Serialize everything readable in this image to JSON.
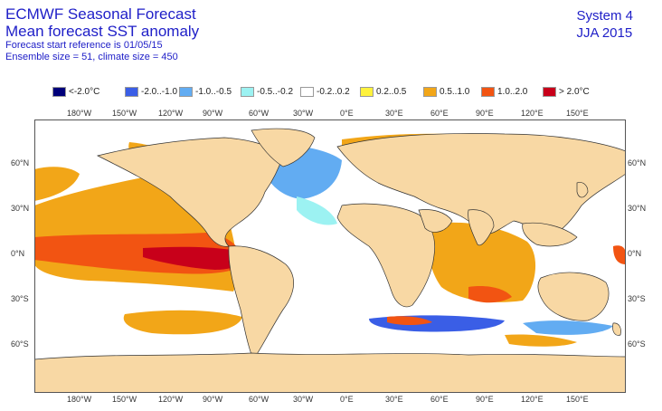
{
  "header": {
    "title_line1": "ECMWF Seasonal Forecast",
    "title_line2": "Mean forecast SST anomaly",
    "info_line1": "Forecast start reference is 01/05/15",
    "info_line2": "Ensemble size = 51, climate size = 450",
    "system": "System 4",
    "season": "JJA 2015"
  },
  "legend": [
    {
      "label": "<-2.0°C",
      "color": "#00007a"
    },
    {
      "label": "-2.0..-1.0",
      "color": "#3a5ee6"
    },
    {
      "label": "-1.0..-0.5",
      "color": "#62acf2"
    },
    {
      "label": "-0.5..-0.2",
      "color": "#9cf2f2"
    },
    {
      "label": "-0.2..0.2",
      "color": "#ffffff"
    },
    {
      "label": "0.2..0.5",
      "color": "#fff23c"
    },
    {
      "label": "0.5..1.0",
      "color": "#f2a618"
    },
    {
      "label": "1.0..2.0",
      "color": "#f25412"
    },
    {
      "label": "> 2.0°C",
      "color": "#c8001a"
    }
  ],
  "axes": {
    "lon_labels": [
      "180°W",
      "150°W",
      "120°W",
      "90°W",
      "60°W",
      "30°W",
      "0°E",
      "30°E",
      "60°E",
      "90°E",
      "120°E",
      "150°E"
    ],
    "lat_labels": [
      "60°N",
      "30°N",
      "0°N",
      "30°S",
      "60°S"
    ]
  },
  "colors": {
    "land": "#f8d8a4",
    "ocean": "#ffffff",
    "coast": "#333333",
    "title_text": "#2020c8"
  }
}
